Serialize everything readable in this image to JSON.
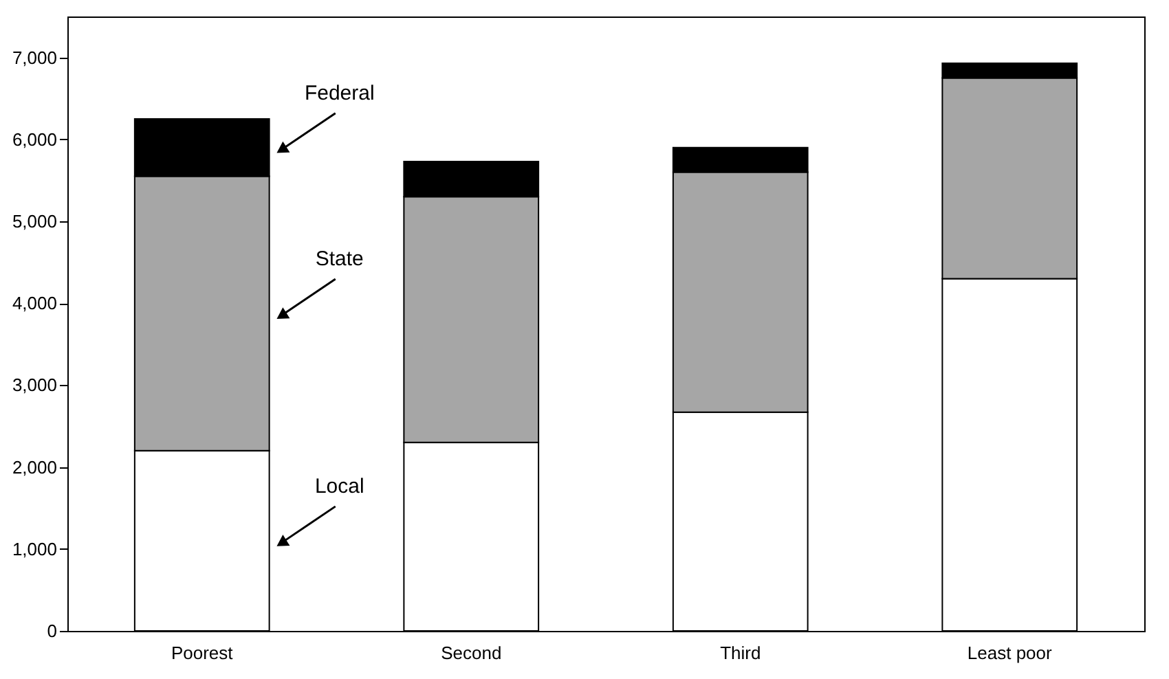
{
  "chart_data": {
    "type": "bar",
    "stacked": true,
    "categories": [
      "Poorest",
      "Second",
      "Third",
      "Least poor"
    ],
    "series": [
      {
        "name": "Local",
        "color": "#ffffff",
        "values": [
          2200,
          2300,
          2670,
          4300
        ]
      },
      {
        "name": "State",
        "color": "#a6a6a6",
        "values": [
          3350,
          3000,
          2930,
          2450
        ]
      },
      {
        "name": "Federal",
        "color": "#000000",
        "values": [
          700,
          430,
          300,
          180
        ]
      }
    ],
    "ylim": [
      0,
      7500
    ],
    "yticks": [
      0,
      {
        "value": 1000,
        "label": "1,000"
      },
      {
        "value": 2000,
        "label": "2,000"
      },
      {
        "value": 3000,
        "label": "3,000"
      },
      {
        "value": 4000,
        "label": "4,000"
      },
      {
        "value": 5000,
        "label": "5,000"
      },
      {
        "value": 6000,
        "label": "6,000"
      },
      {
        "value": 7000,
        "label": "7,000"
      }
    ],
    "grid": false,
    "legend": false
  }
}
